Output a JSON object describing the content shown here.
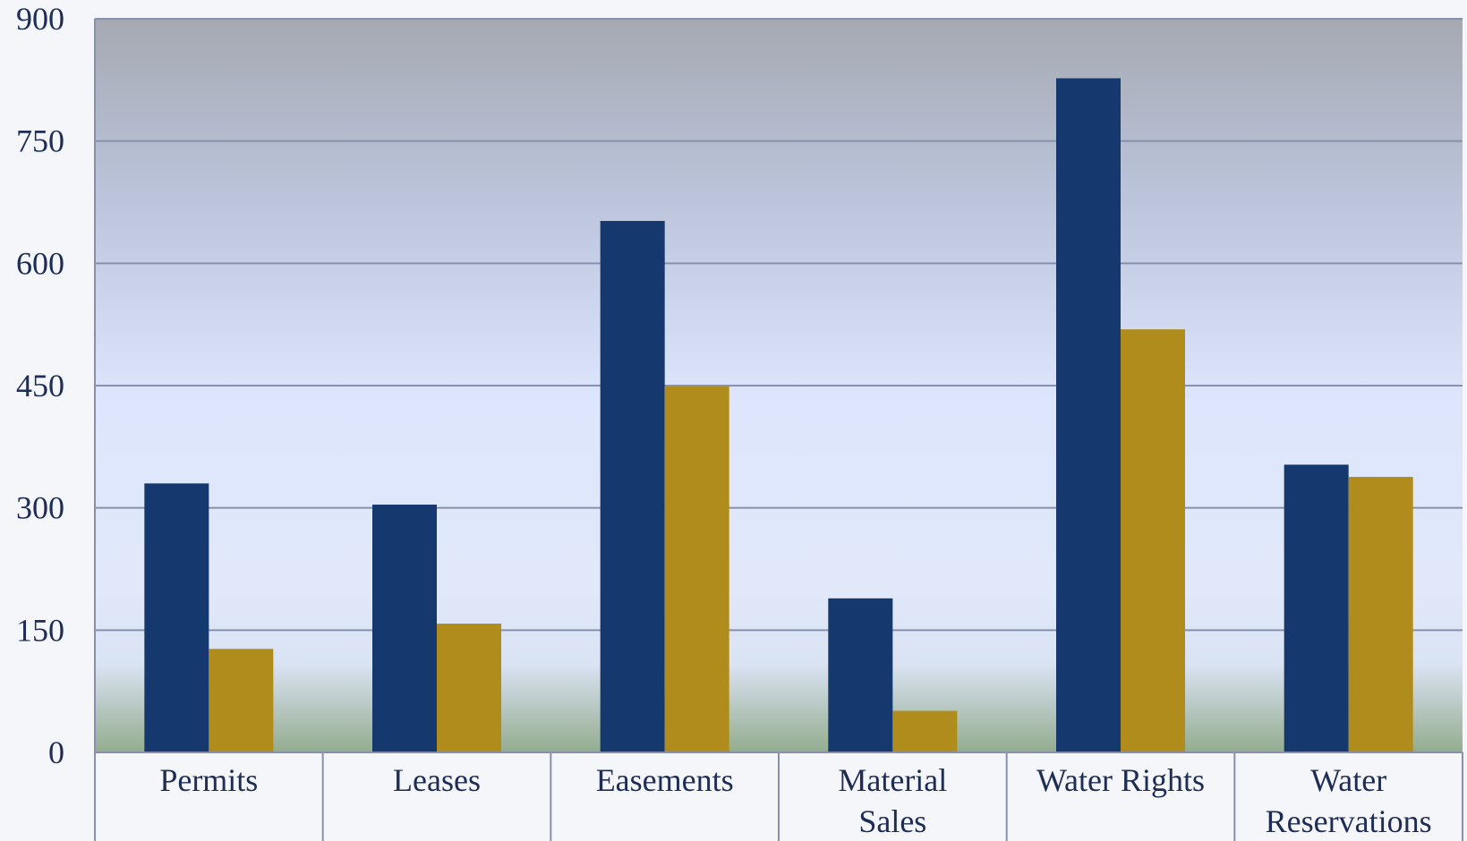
{
  "chart_data": {
    "type": "bar",
    "categories": [
      [
        "Permits"
      ],
      [
        "Leases"
      ],
      [
        "Easements"
      ],
      [
        "Material",
        "Sales"
      ],
      [
        "Water Rights"
      ],
      [
        "Water",
        "Reservations"
      ]
    ],
    "series": [
      {
        "values": [
          330,
          304,
          652,
          189,
          827,
          353
        ],
        "color": "#15386f"
      },
      {
        "values": [
          127,
          158,
          449,
          51,
          519,
          338
        ],
        "color": "#b08c1c"
      }
    ],
    "ylim": [
      0,
      900
    ],
    "yticks": [
      0,
      150,
      300,
      450,
      600,
      750,
      900
    ],
    "grid": true,
    "legend": "none",
    "background_gradient": [
      "#a5a9b2",
      "#bcc5dc",
      "#dde6fc",
      "#e0e8fa",
      "#dae3f3",
      "#93ac8e"
    ]
  }
}
